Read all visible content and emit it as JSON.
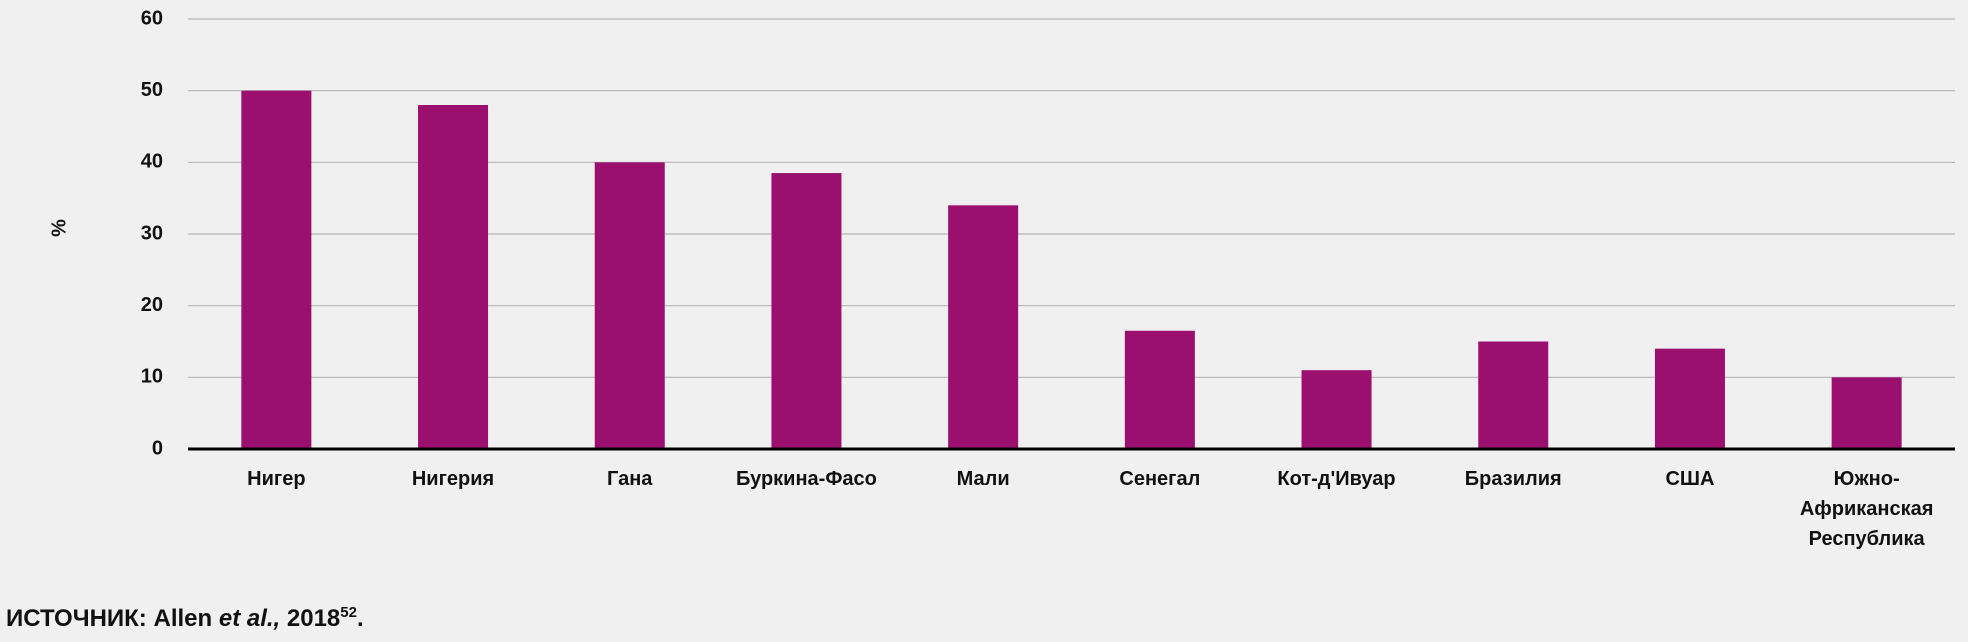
{
  "chart_data": {
    "type": "bar",
    "ylabel": "%",
    "categories": [
      "Нигер",
      "Нигерия",
      "Гана",
      "Буркина-Фасо",
      "Мали",
      "Сенегал",
      "Кот-д'Ивуар",
      "Бразилия",
      "США",
      "Южно-Африканская Республика"
    ],
    "values": [
      50,
      48,
      40,
      38.5,
      34,
      16.5,
      11,
      15,
      14,
      10
    ],
    "color": "#9b0f6e",
    "ylim": [
      0,
      60
    ],
    "yticks": [
      0,
      10,
      20,
      30,
      40,
      50,
      60
    ],
    "grid": true
  },
  "source": {
    "label": "ИСТОЧНИК:",
    "author": "Allen",
    "italic": "et al.,",
    "year": "2018",
    "ref": "52",
    "end": "."
  }
}
